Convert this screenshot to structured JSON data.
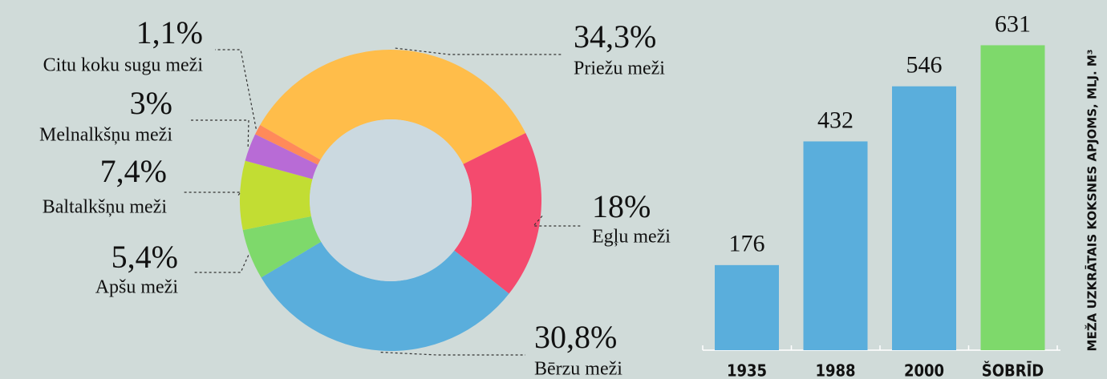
{
  "chart_data": [
    {
      "type": "pie",
      "donut": true,
      "categories": [
        "Priežu meži",
        "Egļu meži",
        "Bērzu meži",
        "Apšu meži",
        "Baltalkšņu meži",
        "Melnalkšņu meži",
        "Citu koku sugu meži"
      ],
      "values": [
        34.3,
        18,
        30.8,
        5.4,
        7.4,
        3,
        1.1
      ],
      "value_labels": [
        "34,3%",
        "18%",
        "30,8%",
        "5,4%",
        "7,4%",
        "3%",
        "1,1%"
      ],
      "colors": [
        "#ffbd4a",
        "#f44a6e",
        "#5aaedc",
        "#7ed96b",
        "#c2dd33",
        "#b86bd6",
        "#ff8a5a"
      ]
    },
    {
      "type": "bar",
      "categories": [
        "1935",
        "1988",
        "2000",
        "ŠOBRĪD"
      ],
      "values": [
        176,
        432,
        546,
        631
      ],
      "colors": [
        "#5aaedc",
        "#5aaedc",
        "#5aaedc",
        "#7ed96b"
      ],
      "y_label": "MEŽA UZKRĀTAIS KOKSNES APJOMS, MLJ. M³",
      "ylim": [
        0,
        650
      ]
    }
  ]
}
